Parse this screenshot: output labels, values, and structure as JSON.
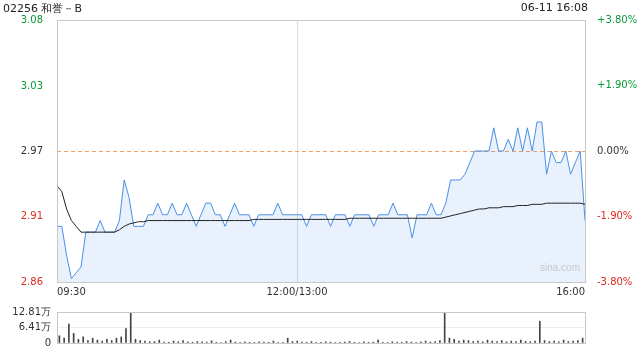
{
  "header": {
    "title": "02256 和誉－B",
    "timestamp": "06-11 16:08"
  },
  "watermark": "sina.com",
  "chart_data": [
    {
      "type": "line",
      "categories": [
        "09:30",
        null,
        null,
        null,
        null,
        null,
        null,
        null,
        null,
        null,
        null,
        null,
        null,
        null,
        null,
        null,
        null,
        null,
        null,
        null,
        null,
        null,
        null,
        null,
        null,
        null,
        null,
        null,
        null,
        null,
        null,
        null,
        null,
        null,
        null,
        null,
        null,
        null,
        null,
        null,
        null,
        null,
        null,
        null,
        null,
        null,
        null,
        null,
        null,
        null,
        "12:00/13:00",
        null,
        null,
        null,
        null,
        null,
        null,
        null,
        null,
        null,
        null,
        null,
        null,
        null,
        null,
        null,
        null,
        null,
        null,
        null,
        null,
        null,
        null,
        null,
        null,
        null,
        null,
        null,
        null,
        null,
        null,
        null,
        null,
        null,
        null,
        null,
        null,
        null,
        null,
        null,
        null,
        null,
        null,
        null,
        null,
        null,
        null,
        null,
        null,
        null,
        null,
        null,
        null,
        null,
        null,
        null,
        null,
        null,
        null,
        null,
        "16:00"
      ],
      "prev_close": 2.97,
      "series": [
        {
          "color": "#4a8fe7",
          "values": [
            2.905,
            2.905,
            2.88,
            2.86,
            2.865,
            2.87,
            2.9,
            2.9,
            2.9,
            2.91,
            2.9,
            2.9,
            2.9,
            2.91,
            2.945,
            2.93,
            2.905,
            2.905,
            2.905,
            2.915,
            2.915,
            2.925,
            2.915,
            2.915,
            2.925,
            2.915,
            2.915,
            2.925,
            2.915,
            2.905,
            2.915,
            2.925,
            2.925,
            2.915,
            2.915,
            2.905,
            2.915,
            2.925,
            2.915,
            2.915,
            2.915,
            2.905,
            2.915,
            2.915,
            2.915,
            2.915,
            2.925,
            2.915,
            2.915,
            2.915,
            2.915,
            2.915,
            2.905,
            2.915,
            2.915,
            2.915,
            2.915,
            2.905,
            2.915,
            2.915,
            2.915,
            2.905,
            2.915,
            2.915,
            2.915,
            2.915,
            2.905,
            2.915,
            2.915,
            2.915,
            2.925,
            2.915,
            2.915,
            2.915,
            2.895,
            2.915,
            2.915,
            2.915,
            2.925,
            2.915,
            2.915,
            2.925,
            2.945,
            2.945,
            2.945,
            2.95,
            2.96,
            2.97,
            2.97,
            2.97,
            2.97,
            2.99,
            2.97,
            2.97,
            2.98,
            2.97,
            2.99,
            2.97,
            2.99,
            2.97,
            2.995,
            2.995,
            2.95,
            2.97,
            2.96,
            2.96,
            2.97,
            2.95,
            2.96,
            2.97,
            2.91
          ]
        },
        {
          "color": "#222222",
          "values": [
            2.94,
            2.935,
            2.92,
            2.91,
            2.905,
            2.9,
            2.9,
            2.9,
            2.9,
            2.9,
            2.9,
            2.9,
            2.9,
            2.902,
            2.905,
            2.907,
            2.908,
            2.909,
            2.909,
            2.91,
            2.91,
            2.91,
            2.91,
            2.91,
            2.91,
            2.91,
            2.91,
            2.91,
            2.91,
            2.91,
            2.91,
            2.91,
            2.91,
            2.91,
            2.91,
            2.91,
            2.91,
            2.91,
            2.91,
            2.91,
            2.91,
            2.911,
            2.911,
            2.911,
            2.911,
            2.911,
            2.911,
            2.911,
            2.911,
            2.911,
            2.911,
            2.911,
            2.911,
            2.911,
            2.911,
            2.911,
            2.911,
            2.911,
            2.911,
            2.911,
            2.911,
            2.912,
            2.912,
            2.912,
            2.912,
            2.912,
            2.912,
            2.912,
            2.912,
            2.912,
            2.912,
            2.912,
            2.912,
            2.912,
            2.912,
            2.912,
            2.912,
            2.912,
            2.912,
            2.912,
            2.912,
            2.913,
            2.914,
            2.915,
            2.916,
            2.917,
            2.918,
            2.919,
            2.92,
            2.92,
            2.921,
            2.921,
            2.921,
            2.922,
            2.922,
            2.922,
            2.923,
            2.923,
            2.923,
            2.924,
            2.924,
            2.924,
            2.925,
            2.925,
            2.925,
            2.925,
            2.925,
            2.925,
            2.925,
            2.925,
            2.924
          ]
        }
      ],
      "ylim": [
        2.857,
        3.083
      ],
      "yticks": [
        {
          "value": 2.857,
          "label": "2.86"
        },
        {
          "value": 2.914,
          "label": "2.91"
        },
        2.97,
        {
          "value": 3.026,
          "label": "3.03"
        },
        {
          "value": 3.083,
          "label": "3.08"
        }
      ],
      "y2lim": [
        -3.8,
        3.8
      ],
      "y2ticks": [
        {
          "value": -3.8,
          "label": "-3.80%"
        },
        {
          "value": -1.9,
          "label": "-1.90%"
        },
        {
          "value": 0,
          "label": "0.00%"
        },
        {
          "value": 1.9,
          "label": "+1.90%"
        },
        {
          "value": 3.8,
          "label": "+3.80%"
        }
      ],
      "grid": true
    },
    {
      "type": "bar",
      "categories": [
        null,
        null,
        null,
        null,
        null,
        null,
        null,
        null,
        null,
        null,
        null,
        null,
        null,
        null,
        null,
        null,
        null,
        null,
        null,
        null,
        null,
        null,
        null,
        null,
        null,
        null,
        null,
        null,
        null,
        null,
        null,
        null,
        null,
        null,
        null,
        null,
        null,
        null,
        null,
        null,
        null,
        null,
        null,
        null,
        null,
        null,
        null,
        null,
        null,
        null,
        null,
        null,
        null,
        null,
        null,
        null,
        null,
        null,
        null,
        null,
        null,
        null,
        null,
        null,
        null,
        null,
        null,
        null,
        null,
        null,
        null,
        null,
        null,
        null,
        null,
        null,
        null,
        null,
        null,
        null,
        null,
        null,
        null,
        null,
        null,
        null,
        null,
        null,
        null,
        null,
        null,
        null,
        null,
        null,
        null,
        null,
        null,
        null,
        null,
        null,
        null,
        null,
        null,
        null,
        null,
        null,
        null,
        null,
        null,
        null,
        null
      ],
      "values": [
        30000,
        20000,
        78000,
        40000,
        15000,
        25000,
        10000,
        20000,
        12000,
        8000,
        15000,
        10000,
        20000,
        25000,
        60000,
        128000,
        15000,
        10000,
        8000,
        5000,
        6000,
        12000,
        4000,
        3000,
        8000,
        5000,
        10000,
        4000,
        3000,
        6000,
        5000,
        4000,
        9000,
        3000,
        2000,
        6000,
        12000,
        4000,
        3000,
        5000,
        3000,
        2000,
        5000,
        4000,
        3000,
        8000,
        2000,
        3000,
        20000,
        6000,
        8000,
        4000,
        3000,
        6000,
        2000,
        3000,
        5000,
        4000,
        2000,
        3000,
        4000,
        6000,
        3000,
        2000,
        5000,
        3000,
        4000,
        12000,
        3000,
        2000,
        5000,
        4000,
        3000,
        6000,
        4000,
        3000,
        5000,
        8000,
        4000,
        6000,
        10000,
        126000,
        20000,
        15000,
        8000,
        12000,
        10000,
        6000,
        8000,
        5000,
        12000,
        8000,
        6000,
        10000,
        5000,
        8000,
        6000,
        12000,
        7000,
        5000,
        8000,
        90000,
        10000,
        6000,
        8000,
        5000,
        12000,
        6000,
        8000,
        10000,
        20000
      ],
      "color": "#444444",
      "ylim": [
        0,
        128100
      ],
      "yticks": [
        0,
        {
          "value": 64100,
          "label": "6.41万"
        },
        {
          "value": 128100,
          "label": "12.81万"
        }
      ],
      "grid": true,
      "tick_labels": "y"
    }
  ]
}
